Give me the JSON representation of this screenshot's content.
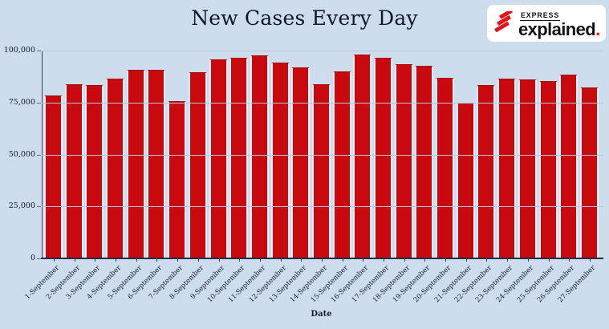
{
  "page": {
    "background": "#cedded"
  },
  "logo": {
    "express_label": "EXPRESS",
    "explained_label": "explained",
    "period": ".",
    "red": "#e0161c"
  },
  "chart_data": {
    "type": "bar",
    "title": "New Cases Every Day",
    "xlabel": "Date",
    "ylabel": "",
    "ylim": [
      0,
      100000
    ],
    "grid": true,
    "legend": "none",
    "bar_color": "#c80a0e",
    "bar_edge_color": "#e9edf6",
    "gridline_color": "#b7c4d9",
    "axis_color": "#242d47",
    "text_color": "#131b30",
    "y_ticks": [
      {
        "value": 100000,
        "label": "100,000"
      },
      {
        "value": 75000,
        "label": "75,000"
      },
      {
        "value": 50000,
        "label": "50,000"
      },
      {
        "value": 25000,
        "label": "25,000"
      },
      {
        "value": 0,
        "label": "0"
      }
    ],
    "categories": [
      "1-September",
      "2-September",
      "3-September",
      "4-September",
      "5-September",
      "6-September",
      "7-September",
      "8-September",
      "9-September",
      "10-September",
      "11-September",
      "12-September",
      "13-September",
      "14-September",
      "15-September",
      "16-September",
      "17-September",
      "18-September",
      "19-September",
      "20-September",
      "21-September",
      "22-September",
      "23-September",
      "24-September",
      "25-September",
      "26-September",
      "27-September"
    ],
    "values": [
      78357,
      83883,
      83341,
      86432,
      90632,
      90802,
      75809,
      89706,
      95735,
      96551,
      97570,
      94372,
      92071,
      83809,
      90123,
      97894,
      96424,
      93337,
      92605,
      86961,
      75083,
      83347,
      86508,
      86052,
      85362,
      88600,
      82170
    ]
  }
}
